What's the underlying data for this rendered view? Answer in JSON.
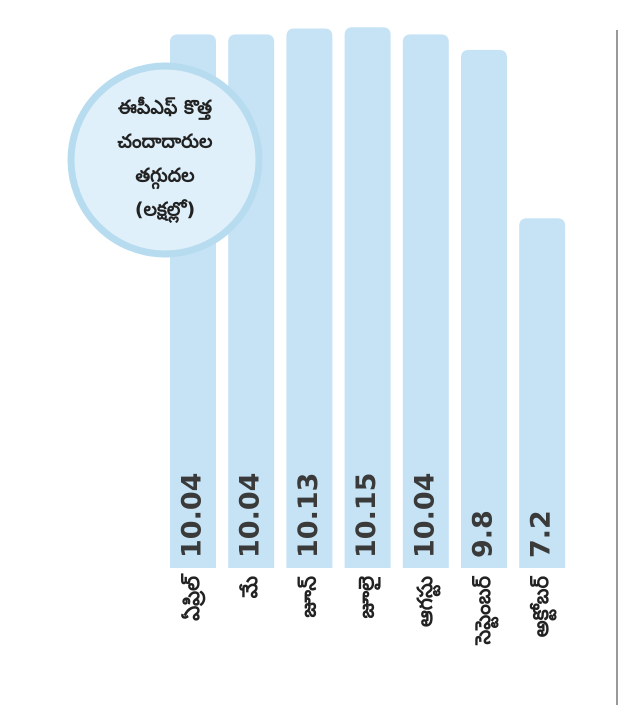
{
  "chart_data": {
    "type": "bar",
    "title": [
      "ఈపీఎఫ్ కొత్త",
      "చందాదారుల",
      "తగ్గుదల",
      "(లక్షల్లో)"
    ],
    "categories": [
      "ఏప్రిల్",
      "మే",
      "జూన్",
      "జూలై",
      "ఆగస్టు",
      "సెప్టెంబర్",
      "అక్టోబర్"
    ],
    "values": [
      10.04,
      10.04,
      10.13,
      10.15,
      10.04,
      9.8,
      7.2
    ],
    "color": "#c5e3f5",
    "ylim": [
      1.8,
      10.4
    ]
  }
}
